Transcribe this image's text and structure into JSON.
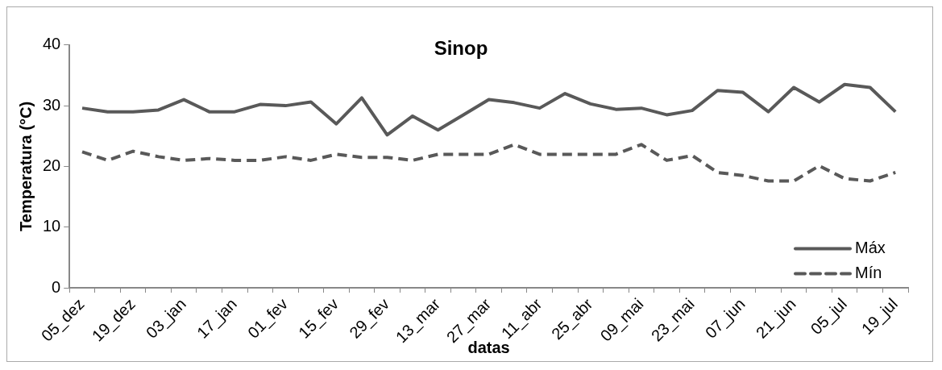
{
  "chart_data": {
    "type": "line",
    "title": "Sinop",
    "xlabel": "datas",
    "ylabel": "Temperatura (°C)",
    "categories": [
      "05_dez",
      null,
      "19_dez",
      null,
      "03_jan",
      null,
      "17_jan",
      null,
      "01_fev",
      null,
      "15_fev",
      null,
      "29_fev",
      null,
      "13_mar",
      null,
      "27_mar",
      null,
      "11_abr",
      null,
      "25_abr",
      null,
      "09_mai",
      null,
      "23_mai",
      null,
      "07_jun",
      null,
      "21_jun",
      null,
      "05_jul",
      null,
      "19_jul"
    ],
    "series": [
      {
        "name": "Máx",
        "color": "#595959",
        "line_style": "solid",
        "values": [
          29.6,
          29.0,
          29.0,
          29.3,
          31.0,
          29.0,
          29.0,
          30.2,
          30.0,
          30.6,
          27.0,
          31.3,
          25.2,
          28.3,
          26.0,
          28.5,
          31.0,
          30.5,
          29.6,
          32.0,
          30.3,
          29.4,
          29.6,
          28.5,
          29.2,
          32.5,
          32.2,
          29.0,
          33.0,
          30.6,
          33.5,
          33.0,
          29.0
        ]
      },
      {
        "name": "Mín",
        "color": "#595959",
        "line_style": "dashed",
        "values": [
          22.4,
          21.0,
          22.5,
          21.6,
          21.0,
          21.3,
          21.0,
          21.0,
          21.6,
          21.0,
          22.0,
          21.5,
          21.5,
          21.0,
          22.0,
          22.0,
          22.0,
          23.6,
          22.0,
          22.0,
          22.0,
          22.0,
          23.6,
          21.0,
          21.8,
          19.0,
          18.5,
          17.6,
          17.6,
          20.1,
          18.0,
          17.6,
          19.0
        ]
      }
    ],
    "ylim": [
      0,
      40
    ],
    "yticks": [
      0,
      10,
      20,
      30,
      40
    ],
    "grid": false,
    "legend": "bottom right",
    "marker": "none"
  }
}
